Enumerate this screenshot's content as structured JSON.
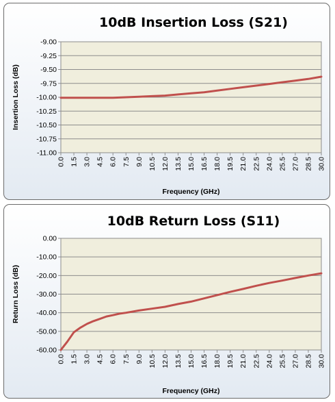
{
  "chart_data": [
    {
      "type": "line",
      "title": "10dB Insertion Loss (S21)",
      "xlabel": "Frequency (GHz)",
      "ylabel": "Insertion Loss (dB)",
      "ylim": [
        -11.0,
        -9.0
      ],
      "yticks": [
        "-9.00",
        "-9.25",
        "-9.50",
        "-9.75",
        "-10.00",
        "-10.25",
        "-10.50",
        "-10.75",
        "-11.00"
      ],
      "xticks": [
        "0.0",
        "1.5",
        "3.0",
        "4.5",
        "6.0",
        "7.5",
        "9.0",
        "10.5",
        "12.0",
        "13.5",
        "15.0",
        "16.5",
        "18.0",
        "19.5",
        "21.0",
        "22.5",
        "24.0",
        "25.5",
        "27.0",
        "28.5",
        "30.0"
      ],
      "xlim": [
        0,
        30
      ],
      "grid": "horizontal",
      "series_color": "#c0504d",
      "series": [
        {
          "x": [
            0,
            1.5,
            3,
            4.5,
            6,
            7.5,
            9,
            10.5,
            12,
            13.5,
            15,
            16.5,
            18,
            19.5,
            21,
            22.5,
            24,
            25.5,
            27,
            28.5,
            30
          ],
          "values": [
            -10.01,
            -10.01,
            -10.01,
            -10.01,
            -10.01,
            -10.0,
            -9.99,
            -9.98,
            -9.97,
            -9.95,
            -9.93,
            -9.91,
            -9.88,
            -9.85,
            -9.82,
            -9.79,
            -9.76,
            -9.73,
            -9.7,
            -9.67,
            -9.63
          ]
        }
      ]
    },
    {
      "type": "line",
      "title": "10dB Return Loss (S11)",
      "xlabel": "Frequency (GHz)",
      "ylabel": "Return Loss (dB)",
      "ylim": [
        -60.0,
        0.0
      ],
      "yticks": [
        "0.00",
        "-10.00",
        "-20.00",
        "-30.00",
        "-40.00",
        "-50.00",
        "-60.00"
      ],
      "xticks": [
        "0.0",
        "1.5",
        "3.0",
        "4.5",
        "6.0",
        "7.5",
        "9.0",
        "10.5",
        "12.0",
        "13.5",
        "15.0",
        "16.5",
        "18.0",
        "19.5",
        "21.0",
        "22.5",
        "24.0",
        "25.5",
        "27.0",
        "28.5",
        "30.0"
      ],
      "xlim": [
        0,
        30
      ],
      "grid": "horizontal",
      "series_color": "#c0504d",
      "series": [
        {
          "x": [
            0,
            0.75,
            1.5,
            2.25,
            3,
            3.75,
            4.5,
            5.25,
            6,
            6.75,
            7.5,
            9,
            10.5,
            12,
            13.5,
            15,
            16.5,
            18,
            19.5,
            21,
            22.5,
            24,
            25.5,
            27,
            28.5,
            30
          ],
          "values": [
            -60.0,
            -55.5,
            -50.5,
            -48.0,
            -46.0,
            -44.5,
            -43.3,
            -42.0,
            -41.3,
            -40.5,
            -40.0,
            -38.8,
            -37.8,
            -36.8,
            -35.3,
            -34.0,
            -32.3,
            -30.5,
            -28.8,
            -27.2,
            -25.5,
            -24.0,
            -22.7,
            -21.3,
            -20.0,
            -18.8
          ]
        }
      ]
    }
  ]
}
